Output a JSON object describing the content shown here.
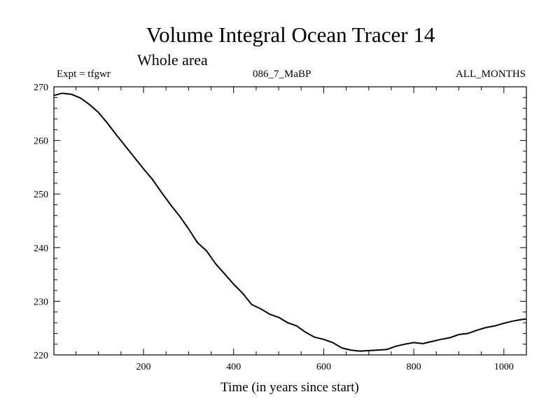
{
  "chart_data": {
    "type": "line",
    "title": "Volume Integral Ocean Tracer 14",
    "subtitle": "Whole area",
    "annotations": {
      "left": "Expt = tfgwr",
      "center": "086_7_MaBP",
      "right": "ALL_MONTHS"
    },
    "xlabel": "Time (in years since start)",
    "ylabel": "",
    "xlim": [
      1,
      1050
    ],
    "ylim": [
      220,
      270
    ],
    "x_ticks": [
      200,
      400,
      600,
      800,
      1000
    ],
    "y_ticks": [
      220,
      230,
      240,
      250,
      260,
      270
    ],
    "grid": false,
    "series": [
      {
        "color": "#000000",
        "x": [
          1,
          20,
          40,
          60,
          80,
          100,
          120,
          140,
          160,
          180,
          200,
          220,
          240,
          260,
          280,
          300,
          320,
          340,
          360,
          380,
          400,
          420,
          440,
          460,
          480,
          500,
          520,
          540,
          560,
          580,
          600,
          620,
          640,
          660,
          680,
          700,
          720,
          740,
          760,
          780,
          800,
          820,
          840,
          860,
          880,
          900,
          920,
          940,
          960,
          980,
          1000,
          1020,
          1040,
          1050
        ],
        "y": [
          268.4,
          268.8,
          268.6,
          267.9,
          266.7,
          265.2,
          263.2,
          261.0,
          258.9,
          256.8,
          254.7,
          252.7,
          250.3,
          248.0,
          245.9,
          243.5,
          240.9,
          239.4,
          237.0,
          235.1,
          233.2,
          231.5,
          229.4,
          228.6,
          227.6,
          227.0,
          226.0,
          225.4,
          224.2,
          223.3,
          222.9,
          222.3,
          221.3,
          220.9,
          220.7,
          220.8,
          220.9,
          221.0,
          221.6,
          222.0,
          222.3,
          222.1,
          222.5,
          222.9,
          223.2,
          223.8,
          224.0,
          224.6,
          225.1,
          225.4,
          225.9,
          226.3,
          226.6,
          226.7
        ]
      }
    ]
  }
}
